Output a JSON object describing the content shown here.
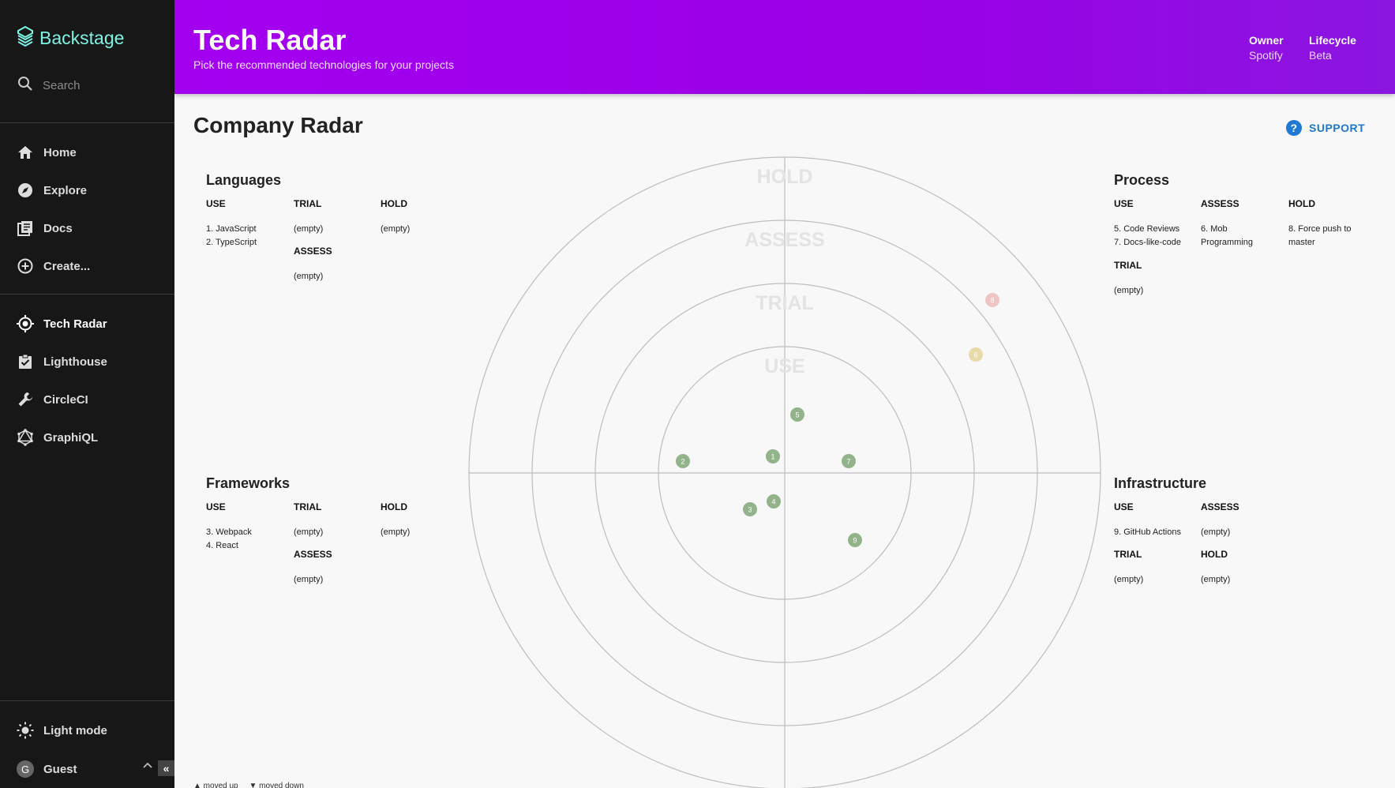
{
  "sidebar": {
    "brand": "Backstage",
    "search_placeholder": "Search",
    "nav_main": [
      {
        "label": "Home",
        "icon": "home-icon"
      },
      {
        "label": "Explore",
        "icon": "compass-icon"
      },
      {
        "label": "Docs",
        "icon": "docs-icon"
      },
      {
        "label": "Create...",
        "icon": "plus-circle-icon"
      }
    ],
    "nav_plugins": [
      {
        "label": "Tech Radar",
        "icon": "radar-icon"
      },
      {
        "label": "Lighthouse",
        "icon": "clipboard-check-icon"
      },
      {
        "label": "CircleCI",
        "icon": "wrench-icon"
      },
      {
        "label": "GraphiQL",
        "icon": "graphql-icon"
      }
    ],
    "theme_toggle": "Light mode",
    "user": "Guest",
    "user_initial": "G"
  },
  "header": {
    "title": "Tech Radar",
    "subtitle": "Pick the recommended technologies for your projects",
    "owner_label": "Owner",
    "owner_value": "Spotify",
    "lifecycle_label": "Lifecycle",
    "lifecycle_value": "Beta"
  },
  "content": {
    "title": "Company Radar",
    "support_label": "SUPPORT"
  },
  "quadrants": {
    "languages": {
      "title": "Languages",
      "use": {
        "label": "USE",
        "items": [
          "1. JavaScript",
          "2. TypeScript"
        ]
      },
      "trial": {
        "label": "TRIAL",
        "items": [
          "(empty)"
        ]
      },
      "assess": {
        "label": "ASSESS",
        "items": [
          "(empty)"
        ]
      },
      "hold": {
        "label": "HOLD",
        "items": [
          "(empty)"
        ]
      }
    },
    "frameworks": {
      "title": "Frameworks",
      "use": {
        "label": "USE",
        "items": [
          "3. Webpack",
          "4. React"
        ]
      },
      "trial": {
        "label": "TRIAL",
        "items": [
          "(empty)"
        ]
      },
      "assess": {
        "label": "ASSESS",
        "items": [
          "(empty)"
        ]
      },
      "hold": {
        "label": "HOLD",
        "items": [
          "(empty)"
        ]
      }
    },
    "process": {
      "title": "Process",
      "use": {
        "label": "USE",
        "items": [
          "5. Code Reviews",
          "7. Docs-like-code"
        ]
      },
      "assess": {
        "label": "ASSESS",
        "items": [
          "6. Mob Programming"
        ]
      },
      "hold": {
        "label": "HOLD",
        "items": [
          "8. Force push to master"
        ]
      },
      "trial": {
        "label": "TRIAL",
        "items": [
          "(empty)"
        ]
      }
    },
    "infrastructure": {
      "title": "Infrastructure",
      "use": {
        "label": "USE",
        "items": [
          "9. GitHub Actions"
        ]
      },
      "assess": {
        "label": "ASSESS",
        "items": [
          "(empty)"
        ]
      },
      "trial": {
        "label": "TRIAL",
        "items": [
          "(empty)"
        ]
      },
      "hold": {
        "label": "HOLD",
        "items": [
          "(empty)"
        ]
      }
    }
  },
  "radar": {
    "rings": [
      "USE",
      "TRIAL",
      "ASSESS",
      "HOLD"
    ],
    "ring_colors": {
      "USE": "#93b48b",
      "TRIAL": "#93b48b",
      "ASSESS": "#e8d9a8",
      "HOLD": "#f0c4c4"
    },
    "blips": [
      {
        "id": "1",
        "ring": "USE"
      },
      {
        "id": "2",
        "ring": "USE"
      },
      {
        "id": "3",
        "ring": "USE"
      },
      {
        "id": "4",
        "ring": "USE"
      },
      {
        "id": "5",
        "ring": "USE"
      },
      {
        "id": "6",
        "ring": "ASSESS"
      },
      {
        "id": "7",
        "ring": "USE"
      },
      {
        "id": "8",
        "ring": "HOLD"
      },
      {
        "id": "9",
        "ring": "USE"
      }
    ]
  },
  "legend": {
    "moved_up": "▲ moved up",
    "moved_down": "▼ moved down"
  }
}
